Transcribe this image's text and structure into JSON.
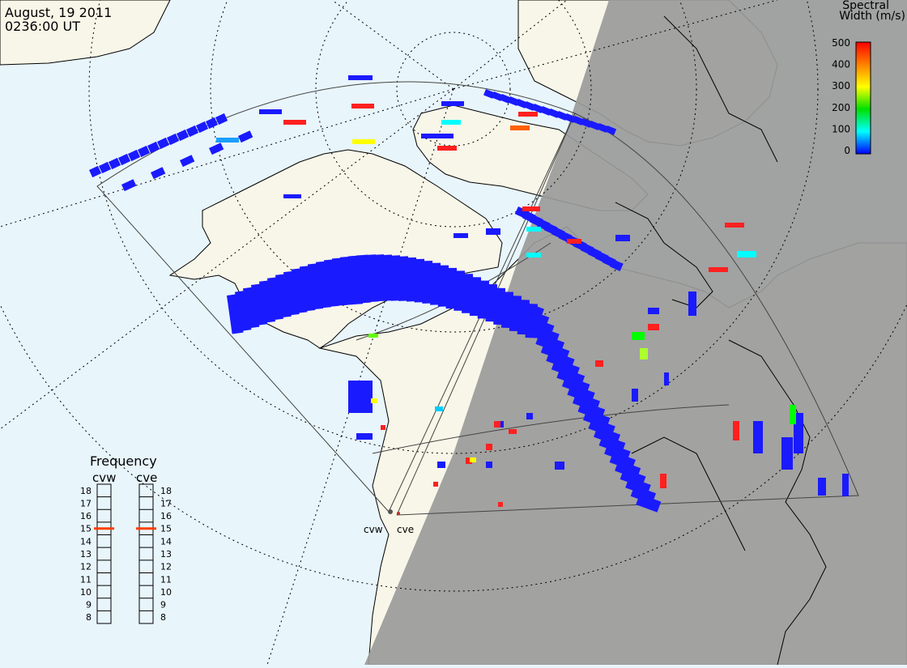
{
  "header": {
    "date": "August, 19 2011",
    "time": "0236:00 UT"
  },
  "colorbar": {
    "title_line1": "Spectral",
    "title_line2": "Width (m/s)",
    "ticks": [
      "500",
      "400",
      "300",
      "200",
      "100",
      "0"
    ],
    "stops": [
      "#ff0000",
      "#ff8000",
      "#ffff00",
      "#00e000",
      "#00ffff",
      "#0000ff"
    ]
  },
  "frequency_panel": {
    "title": "Frequency",
    "radars": [
      "cvw",
      "cve"
    ],
    "levels": [
      "18",
      "17",
      "16",
      "15",
      "14",
      "13",
      "12",
      "11",
      "10",
      "9",
      "8"
    ],
    "selected_mhz": 15,
    "marker_color": "#ff4000"
  },
  "radar_sites": [
    "cvw",
    "cve"
  ],
  "colors": {
    "ocean": "#e8f5fb",
    "land_day": "#f8f6e8",
    "night": "#9a9a9a",
    "scatter_low": "#1a1aff"
  }
}
